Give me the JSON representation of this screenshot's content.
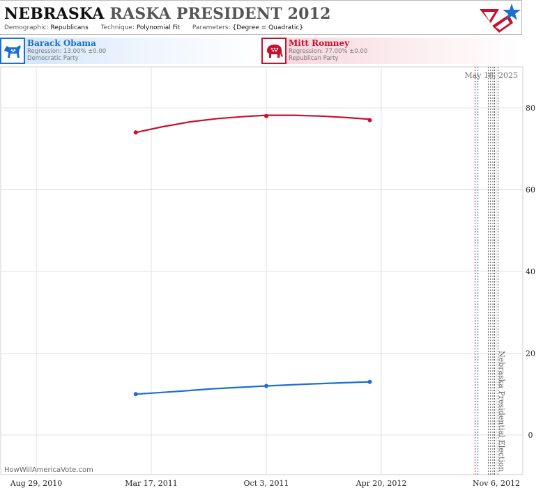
{
  "header": {
    "title_part1": "NEBRASKA",
    "title_part2": "RASKA PRESIDENT 2012",
    "demographic_label": "Demographic:",
    "demographic_value": "Republicans",
    "technique_label": "Technique:",
    "technique_value": "Polynomial Fit",
    "parameters_label": "Parameters:",
    "parameters_value": "{Degree = Quadratic}"
  },
  "candidates": [
    {
      "name": "Barack Obama",
      "regression": "Regression: 13.00% ±0.00",
      "party": "Democratic Party",
      "color": "#1c6fd1",
      "icon": "donkey-icon"
    },
    {
      "name": "Mitt Romney",
      "regression": "Regression: 77.00% ±0.00",
      "party": "Republican Party",
      "color": "#c8102e",
      "icon": "elephant-icon"
    }
  ],
  "watermark": "HowWillAmericaVote.com",
  "current_date_label": "May 18, 2025",
  "election_label": "Nebraska Presidential Election",
  "chart_data": {
    "type": "line",
    "x_tick_labels": [
      "Aug 29, 2010",
      "Mar 17, 2011",
      "Oct 3, 2011",
      "Apr 20, 2012",
      "Nov 6, 2012"
    ],
    "x_tick_dates": [
      "2010-08-29",
      "2011-03-17",
      "2011-10-03",
      "2012-04-20",
      "2012-11-06"
    ],
    "y_ticks": [
      0,
      20,
      40,
      60,
      80
    ],
    "ylim": [
      -6,
      90
    ],
    "grid": true,
    "series": [
      {
        "name": "Mitt Romney",
        "color": "#c8102e",
        "points": [
          {
            "date": "2011-02-18",
            "value": 74
          },
          {
            "date": "2011-10-03",
            "value": 78
          },
          {
            "date": "2012-03-31",
            "value": 77
          }
        ],
        "fit": [
          {
            "date": "2011-02-18",
            "value": 74.0
          },
          {
            "date": "2011-04-06",
            "value": 75.4
          },
          {
            "date": "2011-05-24",
            "value": 76.6
          },
          {
            "date": "2011-07-11",
            "value": 77.4
          },
          {
            "date": "2011-08-28",
            "value": 77.9
          },
          {
            "date": "2011-10-03",
            "value": 78.2
          },
          {
            "date": "2011-11-20",
            "value": 78.2
          },
          {
            "date": "2012-01-07",
            "value": 78.0
          },
          {
            "date": "2012-02-24",
            "value": 77.6
          },
          {
            "date": "2012-03-31",
            "value": 77.2
          }
        ]
      },
      {
        "name": "Barack Obama",
        "color": "#1c6fd1",
        "points": [
          {
            "date": "2011-02-18",
            "value": 10
          },
          {
            "date": "2011-10-03",
            "value": 12
          },
          {
            "date": "2012-03-31",
            "value": 13
          }
        ],
        "fit": [
          {
            "date": "2011-02-18",
            "value": 10.0
          },
          {
            "date": "2011-04-25",
            "value": 10.6
          },
          {
            "date": "2011-07-01",
            "value": 11.3
          },
          {
            "date": "2011-10-03",
            "value": 12.0
          },
          {
            "date": "2011-12-20",
            "value": 12.5
          },
          {
            "date": "2012-03-31",
            "value": 13.0
          }
        ]
      }
    ],
    "vertical_markers": [
      {
        "date": "2012-09-30",
        "color": "#c8102e"
      },
      {
        "date": "2012-10-05",
        "color": "#1c6fd1"
      },
      {
        "date": "2012-10-23",
        "color": "#555555"
      },
      {
        "date": "2012-10-27",
        "color": "#555555"
      },
      {
        "date": "2012-10-31",
        "color": "#555555"
      },
      {
        "date": "2012-11-03",
        "color": "#555555"
      },
      {
        "date": "2012-11-09",
        "color": "#555555"
      }
    ]
  }
}
